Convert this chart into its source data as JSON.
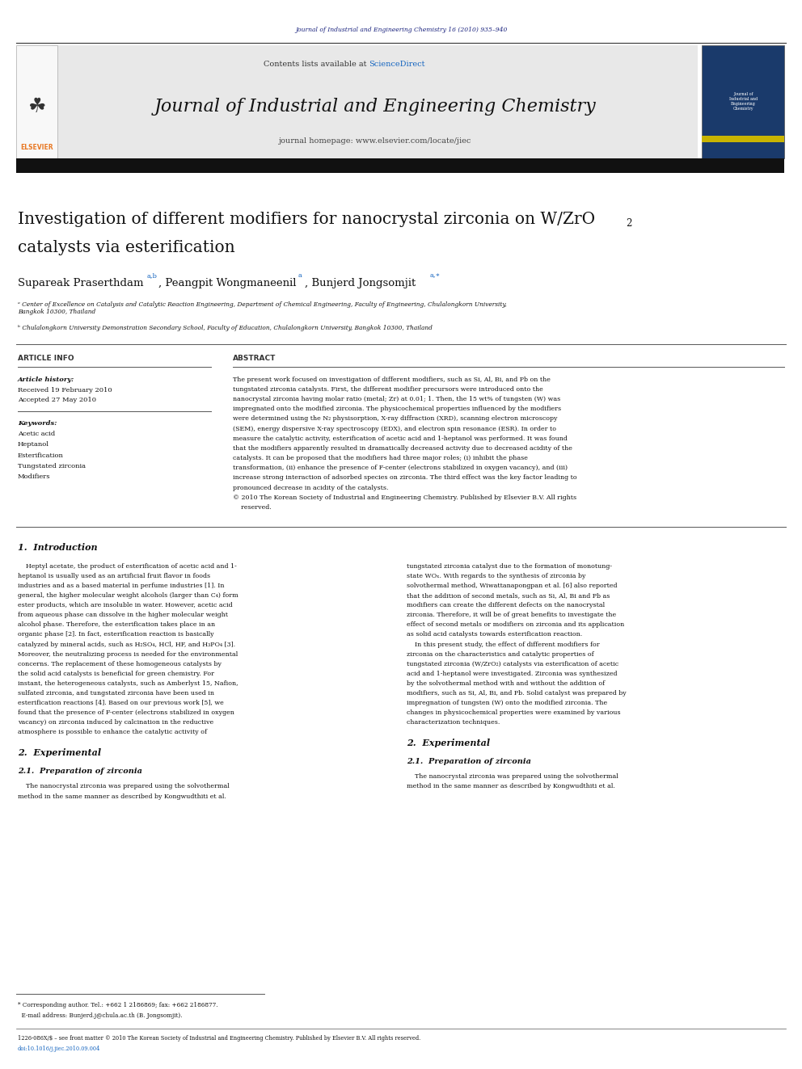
{
  "page_width": 9.92,
  "page_height": 13.23,
  "background_color": "#ffffff",
  "top_journal_ref": "Journal of Industrial and Engineering Chemistry 16 (2010) 935–940",
  "top_journal_ref_color": "#1a237e",
  "header_bg_color": "#e8e8e8",
  "header_contents_text": "Contents lists available at ",
  "header_sciencedirect": "ScienceDirect",
  "header_sciencedirect_color": "#1565c0",
  "journal_name": "Journal of Industrial and Engineering Chemistry",
  "journal_homepage_text": "journal homepage: www.elsevier.com/locate/jiec",
  "black_bar_color": "#111111",
  "article_title_line1": "Investigation of different modifiers for nanocrystal zirconia on W/ZrO",
  "article_title_sub": "2",
  "article_title_line2": "catalysts via esterification",
  "affil_a": "ᵃ Center of Excellence on Catalysis and Catalytic Reaction Engineering, Department of Chemical Engineering, Faculty of Engineering, Chulalongkorn University,\nBangkok 10300, Thailand",
  "affil_b": "ᵇ Chulalongkorn University Demonstration Secondary School, Faculty of Education, Chulalongkorn University, Bangkok 10300, Thailand",
  "article_info_label": "ARTICLE INFO",
  "history_label": "Article history:",
  "received": "Received 19 February 2010",
  "accepted": "Accepted 27 May 2010",
  "keywords_label": "Keywords:",
  "keywords": [
    "Acetic acid",
    "Heptanol",
    "Esterification",
    "Tungstated zirconia",
    "Modifiers"
  ],
  "abstract_label": "ABSTRACT",
  "section1_heading": "1.  Introduction",
  "section2_heading": "2.  Experimental",
  "section21_heading": "2.1.  Preparation of zirconia",
  "footnote_line1": "* Corresponding author. Tel.: +662 1 2186869; fax: +662 2186877.",
  "footnote_line2": "  E-mail address: Bunjerd.j@chula.ac.th (B. Jongsomjit).",
  "footer_line1": "1226-086X/$ – see front matter © 2010 The Korean Society of Industrial and Engineering Chemistry. Published by Elsevier B.V. All rights reserved.",
  "footer_line2": "doi:10.1016/j.jiec.2010.09.004",
  "elsevier_orange": "#e87722",
  "link_color": "#1565c0"
}
